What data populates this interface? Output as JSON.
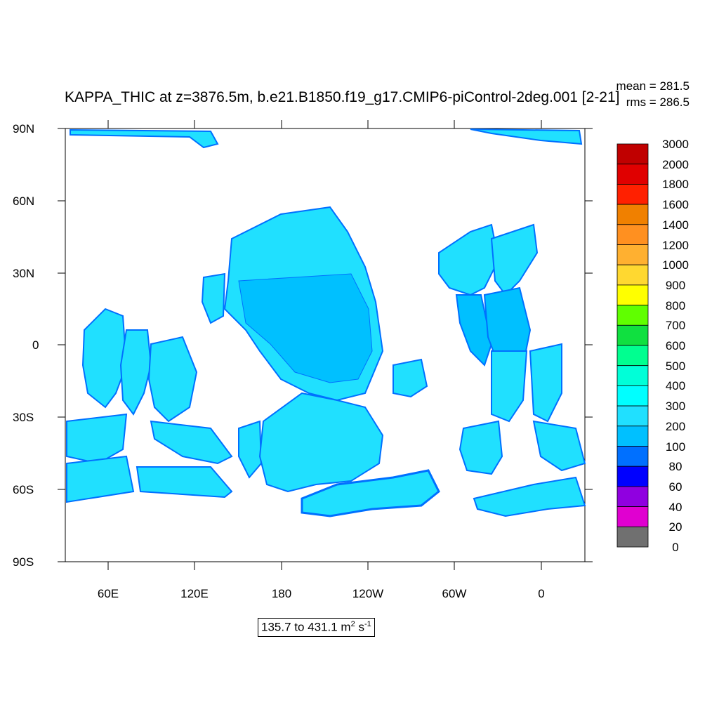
{
  "title": "KAPPA_THIC at z=3876.5m, b.e21.B1850.f19_g17.CMIP6-piControl-2deg.001 [2-21]",
  "stats": {
    "mean": "mean = 281.5",
    "rms": "rms = 286.5"
  },
  "range_text": {
    "prefix": "135.7 to 431.1 m",
    "sup1": "2",
    "mid": " s",
    "sup2": "-1"
  },
  "lat_labels": [
    "90N",
    "60N",
    "30N",
    "0",
    "30S",
    "60S",
    "90S"
  ],
  "lon_labels": [
    "60E",
    "120E",
    "180",
    "120W",
    "60W",
    "0"
  ],
  "colorbar": {
    "levels": [
      "3000",
      "2000",
      "1800",
      "1600",
      "1400",
      "1200",
      "1000",
      "900",
      "800",
      "700",
      "600",
      "500",
      "400",
      "300",
      "200",
      "100",
      "80",
      "60",
      "40",
      "20",
      "0"
    ],
    "colors": [
      "#c00000",
      "#e00000",
      "#ff2000",
      "#f08000",
      "#ff9020",
      "#ffb030",
      "#ffd830",
      "#ffff00",
      "#60ff00",
      "#10e040",
      "#00ff90",
      "#00ffd8",
      "#00ffff",
      "#20e0ff",
      "#00c0ff",
      "#0070ff",
      "#0000ff",
      "#9000e0",
      "#e000d0",
      "#d0d0d0",
      "#707070"
    ]
  },
  "map_colors": {
    "light": "#20e0ff",
    "medium": "#00c0ff",
    "dark": "#0070ff"
  }
}
